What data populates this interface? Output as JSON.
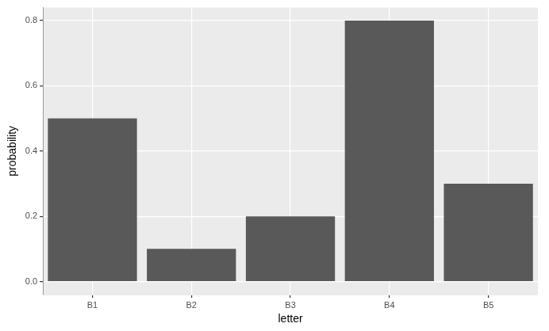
{
  "chart_data": {
    "type": "bar",
    "x_label": "letter",
    "y_label": "probability",
    "categories": [
      "B1",
      "B2",
      "B3",
      "B4",
      "B5"
    ],
    "values": [
      0.5,
      0.1,
      0.2,
      0.8,
      0.3
    ],
    "color": "#595959",
    "ylim": [
      -0.04,
      0.84
    ],
    "yticks": [
      {
        "value": 0,
        "label": "0.0"
      },
      0.2,
      0.4,
      0.6,
      0.8
    ],
    "grid": true
  }
}
